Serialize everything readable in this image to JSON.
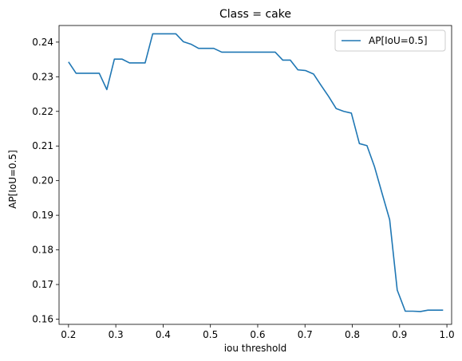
{
  "chart_data": {
    "type": "line",
    "title": "Class = cake",
    "xlabel": "iou threshold",
    "ylabel": "AP[IoU=0.5]",
    "xlim": [
      0.18,
      1.01
    ],
    "ylim": [
      0.1585,
      0.2448
    ],
    "xticks": [
      0.2,
      0.3,
      0.4,
      0.5,
      0.6,
      0.7,
      0.8,
      0.9,
      1.0
    ],
    "xtick_labels": [
      "0.2",
      "0.3",
      "0.4",
      "0.5",
      "0.6",
      "0.7",
      "0.8",
      "0.9",
      "1.0"
    ],
    "yticks": [
      0.16,
      0.17,
      0.18,
      0.19,
      0.2,
      0.21,
      0.22,
      0.23,
      0.24
    ],
    "ytick_labels": [
      "0.16",
      "0.17",
      "0.18",
      "0.19",
      "0.20",
      "0.21",
      "0.22",
      "0.23",
      "0.24"
    ],
    "grid": false,
    "legend_position": "top-right",
    "series": [
      {
        "name": "AP[IoU=0.5]",
        "color": "#1f77b4",
        "x": [
          0.2,
          0.216,
          0.232,
          0.248,
          0.265,
          0.281,
          0.297,
          0.313,
          0.329,
          0.345,
          0.362,
          0.378,
          0.394,
          0.41,
          0.427,
          0.443,
          0.459,
          0.475,
          0.491,
          0.507,
          0.524,
          0.54,
          0.556,
          0.572,
          0.588,
          0.604,
          0.621,
          0.637,
          0.653,
          0.669,
          0.685,
          0.701,
          0.718,
          0.734,
          0.75,
          0.766,
          0.782,
          0.798,
          0.815,
          0.831,
          0.847,
          0.863,
          0.879,
          0.895,
          0.912,
          0.928,
          0.944,
          0.96,
          0.976,
          0.992
        ],
        "values": [
          0.2343,
          0.231,
          0.231,
          0.231,
          0.231,
          0.2263,
          0.2351,
          0.2351,
          0.234,
          0.234,
          0.234,
          0.2424,
          0.2424,
          0.2424,
          0.2424,
          0.2401,
          0.2394,
          0.2382,
          0.2382,
          0.2382,
          0.2371,
          0.2371,
          0.2371,
          0.2371,
          0.2371,
          0.2371,
          0.2371,
          0.2371,
          0.2348,
          0.2348,
          0.232,
          0.2318,
          0.2308,
          0.2275,
          0.2243,
          0.2208,
          0.22,
          0.2195,
          0.2107,
          0.2101,
          0.204,
          0.1963,
          0.1887,
          0.1684,
          0.1623,
          0.1623,
          0.1622,
          0.1626,
          0.1626,
          0.1626
        ]
      }
    ]
  }
}
